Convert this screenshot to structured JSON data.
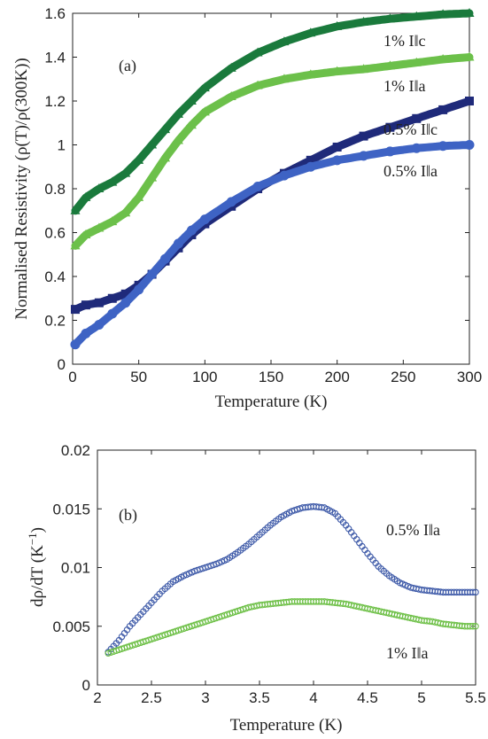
{
  "chart_data": [
    {
      "type": "line",
      "panel_label": "(a)",
      "xlabel": "Temperature (K)",
      "ylabel": "Normalised Resistivity (ρ(T)/ρ(300K))",
      "xlim": [
        0,
        300
      ],
      "ylim": [
        0,
        1.6
      ],
      "xticks": [
        "0",
        "50",
        "100",
        "150",
        "200",
        "250",
        "300"
      ],
      "yticks": [
        "0",
        "0.2",
        "0.4",
        "0.6",
        "0.8",
        "1",
        "1.2",
        "1.4",
        "1.6"
      ],
      "grid": false,
      "series": [
        {
          "name": "1% I||c",
          "label": "1% I‖c",
          "color": "#1a7a3c",
          "marker": "triangle",
          "x": [
            2,
            10,
            20,
            30,
            40,
            50,
            60,
            70,
            80,
            90,
            100,
            120,
            140,
            160,
            180,
            200,
            220,
            240,
            260,
            280,
            300
          ],
          "y": [
            0.7,
            0.76,
            0.8,
            0.83,
            0.87,
            0.93,
            1.0,
            1.07,
            1.14,
            1.2,
            1.26,
            1.35,
            1.42,
            1.47,
            1.51,
            1.54,
            1.56,
            1.575,
            1.585,
            1.595,
            1.6
          ]
        },
        {
          "name": "1% I||a",
          "label": "1% I‖a",
          "color": "#6cc04a",
          "marker": "triangle",
          "x": [
            2,
            10,
            20,
            30,
            40,
            50,
            60,
            70,
            80,
            90,
            100,
            120,
            140,
            160,
            180,
            200,
            220,
            240,
            260,
            280,
            300
          ],
          "y": [
            0.54,
            0.59,
            0.62,
            0.65,
            0.69,
            0.76,
            0.85,
            0.94,
            1.02,
            1.09,
            1.15,
            1.22,
            1.27,
            1.3,
            1.32,
            1.335,
            1.345,
            1.36,
            1.375,
            1.39,
            1.4
          ]
        },
        {
          "name": "0.5% I||c",
          "label": "0.5% I‖c",
          "color": "#1f2a7a",
          "marker": "square",
          "x": [
            2,
            10,
            20,
            30,
            40,
            50,
            60,
            70,
            80,
            90,
            100,
            120,
            140,
            160,
            180,
            200,
            220,
            240,
            260,
            280,
            300
          ],
          "y": [
            0.25,
            0.27,
            0.28,
            0.3,
            0.32,
            0.36,
            0.41,
            0.47,
            0.53,
            0.59,
            0.64,
            0.72,
            0.8,
            0.87,
            0.93,
            0.99,
            1.04,
            1.08,
            1.12,
            1.16,
            1.2
          ]
        },
        {
          "name": "0.5% I||a",
          "label": "0.5% I‖a",
          "color": "#3e63c4",
          "marker": "circle",
          "x": [
            2,
            10,
            20,
            30,
            40,
            50,
            60,
            70,
            80,
            90,
            100,
            120,
            140,
            160,
            180,
            200,
            220,
            240,
            260,
            280,
            300
          ],
          "y": [
            0.09,
            0.14,
            0.18,
            0.23,
            0.28,
            0.34,
            0.41,
            0.48,
            0.55,
            0.61,
            0.66,
            0.74,
            0.81,
            0.86,
            0.9,
            0.93,
            0.95,
            0.97,
            0.985,
            0.995,
            1.0
          ]
        }
      ]
    },
    {
      "type": "scatter",
      "panel_label": "(b)",
      "xlabel": "Temperature (K)",
      "ylabel": "dρ/dT (K",
      "ylabel_sup": "−1",
      "ylabel_end": ")",
      "xlim": [
        2,
        5.5
      ],
      "ylim": [
        0,
        0.02
      ],
      "xticks": [
        "2",
        "2.5",
        "3",
        "3.5",
        "4",
        "4.5",
        "5",
        "5.5"
      ],
      "yticks": [
        "0",
        "0.005",
        "0.01",
        "0.015",
        "0.02"
      ],
      "grid": false,
      "series": [
        {
          "name": "0.5% I||a",
          "label": "0.5% I‖a",
          "color": "#3e5aa8",
          "marker": "open-circle",
          "x": [
            2.1,
            2.2,
            2.3,
            2.4,
            2.5,
            2.6,
            2.7,
            2.8,
            2.9,
            3.0,
            3.1,
            3.2,
            3.3,
            3.4,
            3.5,
            3.6,
            3.7,
            3.8,
            3.9,
            4.0,
            4.1,
            4.2,
            4.3,
            4.4,
            4.5,
            4.6,
            4.7,
            4.8,
            4.9,
            5.0,
            5.1,
            5.2,
            5.3,
            5.4,
            5.5
          ],
          "y": [
            0.0028,
            0.0038,
            0.005,
            0.006,
            0.007,
            0.008,
            0.0088,
            0.0093,
            0.0097,
            0.01,
            0.0103,
            0.0107,
            0.0113,
            0.012,
            0.0128,
            0.0136,
            0.0143,
            0.0148,
            0.0151,
            0.0152,
            0.0151,
            0.0146,
            0.0136,
            0.0124,
            0.0112,
            0.0101,
            0.0093,
            0.0087,
            0.0083,
            0.0081,
            0.008,
            0.0079,
            0.0079,
            0.0079,
            0.0079
          ]
        },
        {
          "name": "1% I||a",
          "label": "1% I‖a",
          "color": "#6cbf45",
          "marker": "open-circle",
          "x": [
            2.1,
            2.2,
            2.3,
            2.4,
            2.5,
            2.6,
            2.7,
            2.8,
            2.9,
            3.0,
            3.1,
            3.2,
            3.3,
            3.4,
            3.5,
            3.6,
            3.7,
            3.8,
            3.9,
            4.0,
            4.1,
            4.2,
            4.3,
            4.4,
            4.5,
            4.6,
            4.7,
            4.8,
            4.9,
            5.0,
            5.1,
            5.2,
            5.3,
            5.4,
            5.5
          ],
          "y": [
            0.0027,
            0.003,
            0.0033,
            0.0036,
            0.0039,
            0.0042,
            0.0045,
            0.0048,
            0.0051,
            0.0054,
            0.0057,
            0.006,
            0.0063,
            0.0066,
            0.0068,
            0.0069,
            0.007,
            0.0071,
            0.0071,
            0.0071,
            0.0071,
            0.007,
            0.0069,
            0.0067,
            0.0065,
            0.0063,
            0.0061,
            0.0059,
            0.0057,
            0.0055,
            0.0054,
            0.0052,
            0.0051,
            0.005,
            0.005
          ]
        }
      ]
    }
  ]
}
